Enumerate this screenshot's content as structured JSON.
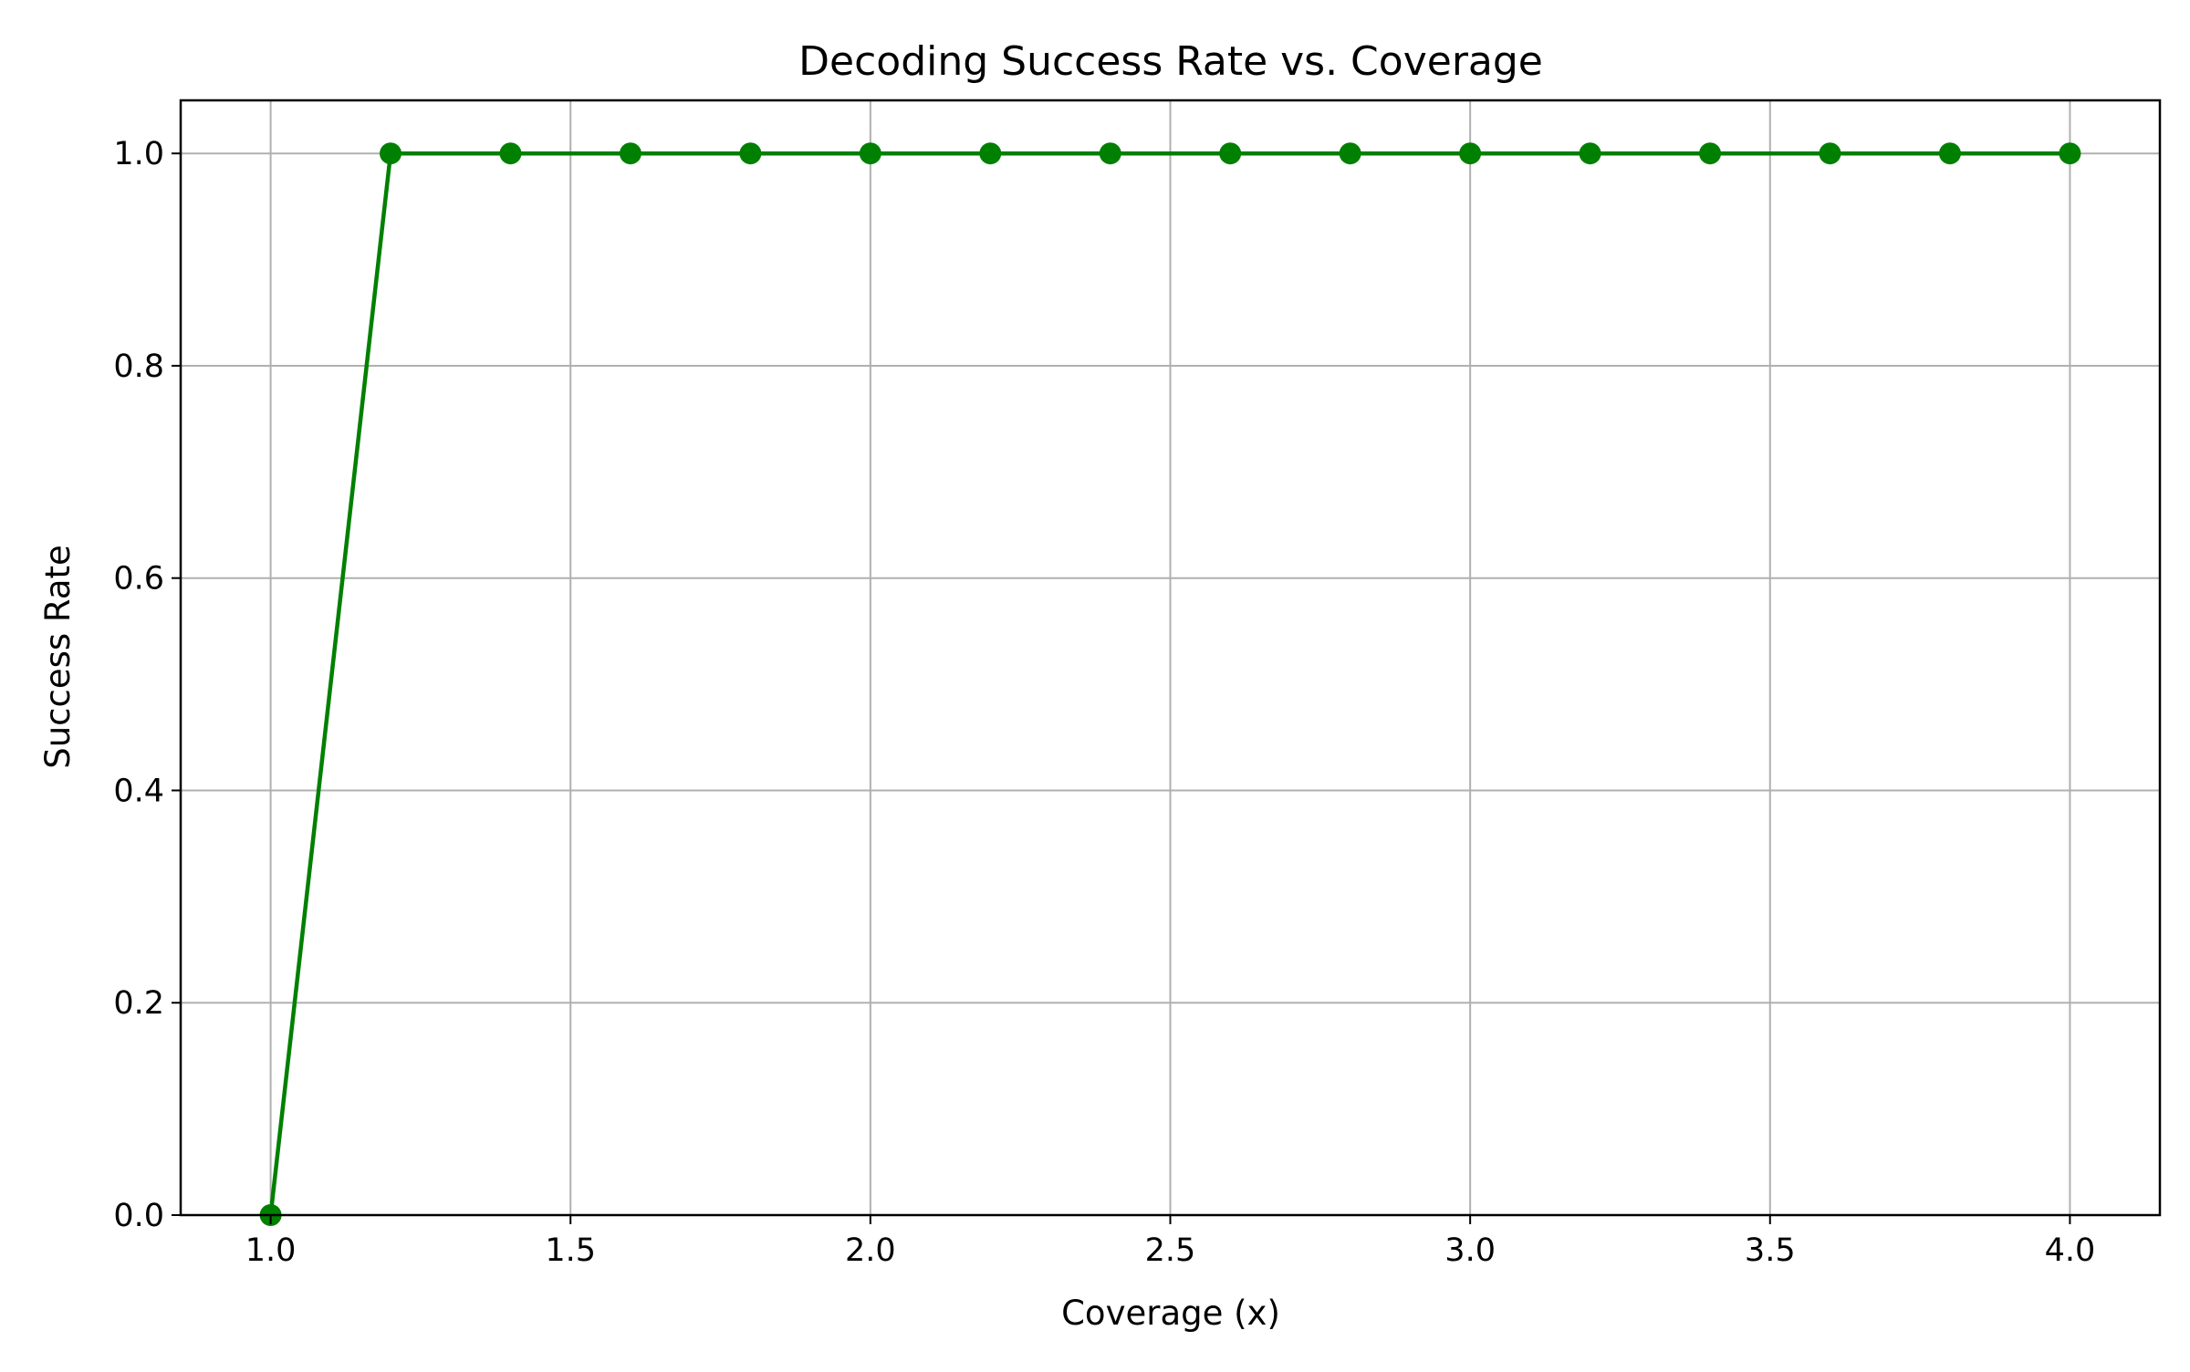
{
  "chart_data": {
    "type": "line",
    "title": "Decoding Success Rate vs. Coverage",
    "xlabel": "Coverage (x)",
    "ylabel": "Success Rate",
    "xlim": [
      0.85,
      4.15
    ],
    "ylim": [
      0.0,
      1.05
    ],
    "x_ticks": [
      {
        "value": 1.0,
        "label": "1.0"
      },
      {
        "value": 1.5,
        "label": "1.5"
      },
      {
        "value": 2.0,
        "label": "2.0"
      },
      {
        "value": 2.5,
        "label": "2.5"
      },
      {
        "value": 3.0,
        "label": "3.0"
      },
      {
        "value": 3.5,
        "label": "3.5"
      },
      {
        "value": 4.0,
        "label": "4.0"
      }
    ],
    "y_ticks": [
      {
        "value": 0.0,
        "label": "0.0"
      },
      {
        "value": 0.2,
        "label": "0.2"
      },
      {
        "value": 0.4,
        "label": "0.4"
      },
      {
        "value": 0.6,
        "label": "0.6"
      },
      {
        "value": 0.8,
        "label": "0.8"
      },
      {
        "value": 1.0,
        "label": "1.0"
      }
    ],
    "grid": true,
    "series": [
      {
        "color": "#008000",
        "marker": "circle",
        "x": [
          1.0,
          1.2,
          1.4,
          1.6,
          1.8,
          2.0,
          2.2,
          2.4,
          2.6,
          2.8,
          3.0,
          3.2,
          3.4,
          3.6,
          3.8,
          4.0
        ],
        "y": [
          0.0,
          1.0,
          1.0,
          1.0,
          1.0,
          1.0,
          1.0,
          1.0,
          1.0,
          1.0,
          1.0,
          1.0,
          1.0,
          1.0,
          1.0,
          1.0
        ]
      }
    ],
    "colors": {
      "grid": "#b0b0b0",
      "axes": "#000000",
      "background": "#ffffff"
    }
  }
}
